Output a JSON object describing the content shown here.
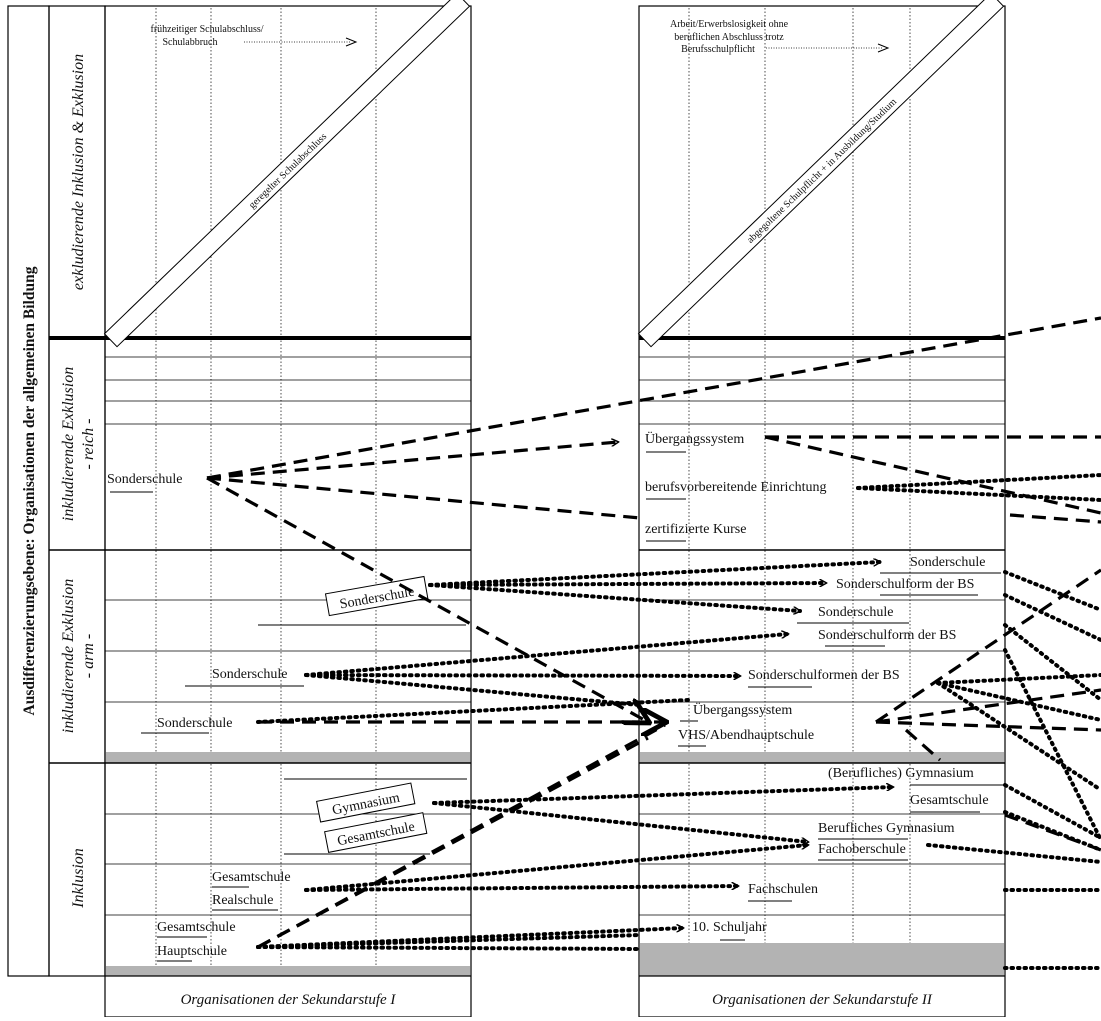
{
  "main_axis_label": "Ausdifferenzierungsebene: Organisationen der allgemeinen Bildung",
  "rows": {
    "exkludierend": "exkludierende Inklusion & Exklusion",
    "reich_line1": "inkludierende Exklusion",
    "reich_line2": "- reich -",
    "arm_line1": "inkludierende Exklusion",
    "arm_line2": "- arm -",
    "inklusion": "Inklusion"
  },
  "footers": {
    "sek1": "Organisationen der Sekundarstufe I",
    "sek2": "Organisationen der Sekundarstufe II"
  },
  "sek1": {
    "top_note_line1": "frühzeitiger Schulabschluss/",
    "top_note_line2": "Schulabbruch",
    "diagonal_bar": "geregelter Schulabschluss",
    "reich_sonderschule": "Sonderschule",
    "arm_boxed_sonderschule": "Sonderschule",
    "arm_sonderschule_mid": "Sonderschule",
    "arm_sonderschule_low": "Sonderschule",
    "inkl_gymnasium": "Gymnasium",
    "inkl_gesamtschule_boxed": "Gesamtschule",
    "inkl_gesamtschule": "Gesamtschule",
    "inkl_realschule": "Realschule",
    "inkl_gesamtschule_low": "Gesamtschule",
    "inkl_hauptschule": "Hauptschule"
  },
  "sek2": {
    "top_note_line1": "Arbeit/Erwerbslosigkeit ohne",
    "top_note_line2": "beruflichen Abschluss trotz",
    "top_note_line3": "Berufsschulpflicht",
    "diagonal_bar": "abgegoltene Schulpflicht + in Ausbildung/Studium",
    "reich_uebergangssystem": "Übergangssystem",
    "reich_berufsvorbereitend": "berufsvorbereitende Einrichtung",
    "reich_zertifiziert": "zertifizierte Kurse",
    "arm_sonderschule_1": "Sonderschule",
    "arm_sonderschulform_1": "Sonderschulform der BS",
    "arm_sonderschule_2": "Sonderschule",
    "arm_sonderschulform_2": "Sonderschulform der BS",
    "arm_sonderschulformen": "Sonderschulformen der BS",
    "arm_uebergangssystem": "Übergangssystem",
    "arm_vhs": "VHS/Abendhauptschule",
    "inkl_gymnasium": "(Berufliches) Gymnasium",
    "inkl_gesamtschule": "Gesamtschule",
    "inkl_beruflichesgym": "Berufliches Gymnasium",
    "inkl_fachoberschule": "Fachoberschule",
    "inkl_fachschulen": "Fachschulen",
    "inkl_schuljahr": "10. Schuljahr"
  }
}
